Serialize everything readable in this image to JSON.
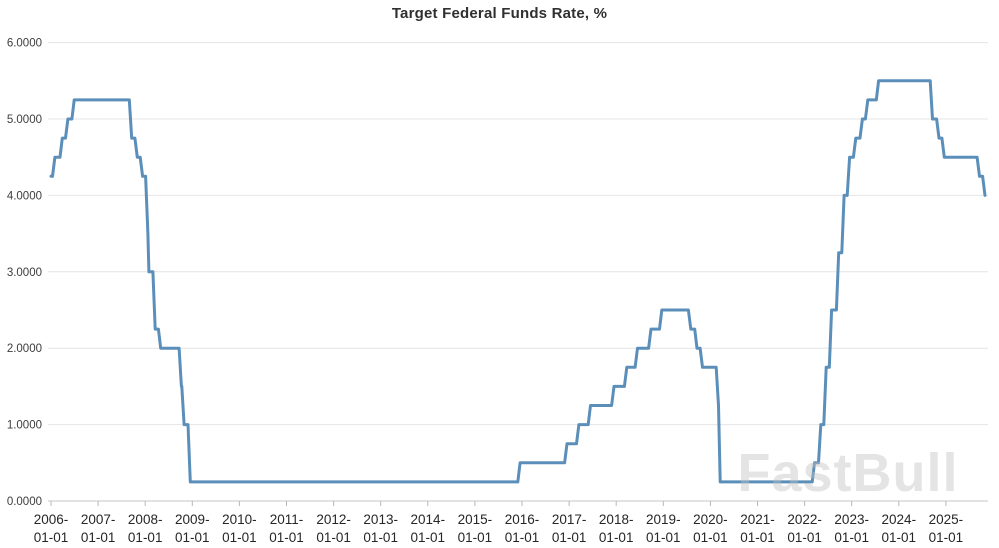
{
  "title": "Target Federal Funds Rate, %",
  "watermark": "FastBull",
  "colors": {
    "line": "#5b8fba",
    "grid": "#e4e4e4",
    "axis": "#c6c6c6",
    "tick": "#b8b8b8",
    "y_label": "#3d3d3d",
    "x_label": "#262626",
    "title": "#303030"
  },
  "chart_data": {
    "type": "line",
    "title": "Target Federal Funds Rate, %",
    "xlabel": "",
    "ylabel": "",
    "ylim": [
      0,
      6
    ],
    "grid": true,
    "legend": "none",
    "y_ticks": [
      {
        "label": "0.0000",
        "value": 0
      },
      {
        "label": "1.0000",
        "value": 1
      },
      {
        "label": "2.0000",
        "value": 2
      },
      {
        "label": "3.0000",
        "value": 3
      },
      {
        "label": "4.0000",
        "value": 4
      },
      {
        "label": "5.0000",
        "value": 5
      },
      {
        "label": "6.0000",
        "value": 6
      }
    ],
    "x_ticks": [
      "2006-01-01",
      "2007-01-01",
      "2008-01-01",
      "2009-01-01",
      "2010-01-01",
      "2011-01-01",
      "2012-01-01",
      "2013-01-01",
      "2014-01-01",
      "2015-01-01",
      "2016-01-01",
      "2017-01-01",
      "2018-01-01",
      "2019-01-01",
      "2020-01-01",
      "2021-01-01",
      "2022-01-01",
      "2023-01-01",
      "2024-01-01",
      "2025-01-01"
    ],
    "series_name": "Target Federal Funds Rate, %",
    "points": [
      [
        "2006-01-01",
        4.25
      ],
      [
        "2006-01-31",
        4.5
      ],
      [
        "2006-03-28",
        4.75
      ],
      [
        "2006-05-10",
        5.0
      ],
      [
        "2006-06-29",
        5.25
      ],
      [
        "2007-09-18",
        4.75
      ],
      [
        "2007-10-31",
        4.5
      ],
      [
        "2007-12-11",
        4.25
      ],
      [
        "2008-01-22",
        3.5
      ],
      [
        "2008-01-30",
        3.0
      ],
      [
        "2008-03-18",
        2.25
      ],
      [
        "2008-04-30",
        2.0
      ],
      [
        "2008-10-08",
        1.5
      ],
      [
        "2008-10-29",
        1.0
      ],
      [
        "2008-12-16",
        0.25
      ],
      [
        "2015-12-17",
        0.5
      ],
      [
        "2016-12-15",
        0.75
      ],
      [
        "2017-03-16",
        1.0
      ],
      [
        "2017-06-15",
        1.25
      ],
      [
        "2017-12-14",
        1.5
      ],
      [
        "2018-03-22",
        1.75
      ],
      [
        "2018-06-14",
        2.0
      ],
      [
        "2018-09-27",
        2.25
      ],
      [
        "2018-12-20",
        2.5
      ],
      [
        "2019-08-01",
        2.25
      ],
      [
        "2019-09-19",
        2.0
      ],
      [
        "2019-10-31",
        1.75
      ],
      [
        "2020-03-03",
        1.25
      ],
      [
        "2020-03-16",
        0.25
      ],
      [
        "2022-03-17",
        0.5
      ],
      [
        "2022-05-05",
        1.0
      ],
      [
        "2022-06-16",
        1.75
      ],
      [
        "2022-07-28",
        2.5
      ],
      [
        "2022-09-22",
        3.25
      ],
      [
        "2022-11-03",
        4.0
      ],
      [
        "2022-12-15",
        4.5
      ],
      [
        "2023-02-02",
        4.75
      ],
      [
        "2023-03-23",
        5.0
      ],
      [
        "2023-05-04",
        5.25
      ],
      [
        "2023-07-27",
        5.5
      ],
      [
        "2024-09-19",
        5.0
      ],
      [
        "2024-11-08",
        4.75
      ],
      [
        "2024-12-19",
        4.5
      ],
      [
        "2025-09-18",
        4.25
      ],
      [
        "2025-10-30",
        4.0
      ]
    ]
  }
}
